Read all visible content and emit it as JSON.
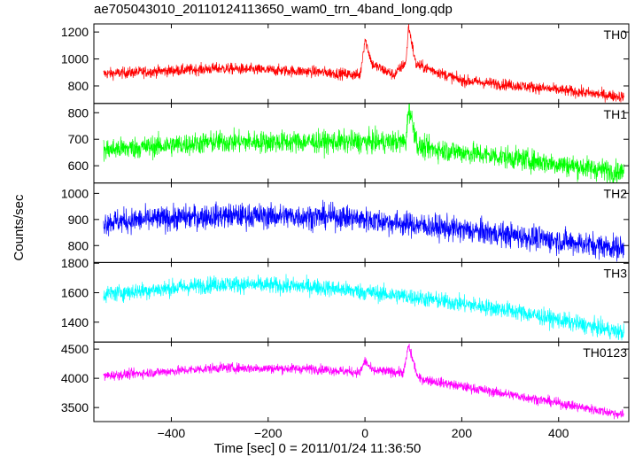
{
  "title": "ae705043010_20110124113650_wam0_trn_4band_long.qdp",
  "chart_data": {
    "type": "line",
    "xlabel": "Time [sec] 0 = 2011/01/24 11:36:50",
    "ylabel": "Counts/sec",
    "xlim": [
      -560,
      545
    ],
    "x_ticks": [
      -400,
      -200,
      0,
      200,
      400
    ],
    "x_tick_labels": [
      "−400",
      "−200",
      "0",
      "200",
      "400"
    ],
    "panels": [
      {
        "name": "TH0",
        "color": "#ff0000",
        "ylim": [
          670,
          1260
        ],
        "y_ticks": [
          800,
          1000,
          1200
        ],
        "y_tick_labels": [
          "800",
          "1000",
          "1200"
        ],
        "trend": [
          [
            -540,
            890
          ],
          [
            -300,
            930
          ],
          [
            -100,
            905
          ],
          [
            -10,
            880
          ],
          [
            0,
            1150
          ],
          [
            15,
            960
          ],
          [
            60,
            880
          ],
          [
            85,
            980
          ],
          [
            90,
            1250
          ],
          [
            105,
            960
          ],
          [
            200,
            840
          ],
          [
            350,
            790
          ],
          [
            530,
            720
          ]
        ],
        "noise": 40
      },
      {
        "name": "TH1",
        "color": "#00ff00",
        "ylim": [
          535,
          835
        ],
        "y_ticks": [
          600,
          700,
          800
        ],
        "y_tick_labels": [
          "600",
          "700",
          "800"
        ],
        "trend": [
          [
            -540,
            660
          ],
          [
            -300,
            690
          ],
          [
            0,
            690
          ],
          [
            85,
            690
          ],
          [
            90,
            825
          ],
          [
            110,
            670
          ],
          [
            300,
            630
          ],
          [
            530,
            575
          ]
        ],
        "noise": 40
      },
      {
        "name": "TH2",
        "color": "#0000ff",
        "ylim": [
          735,
          1040
        ],
        "y_ticks": [
          800,
          900,
          1000
        ],
        "y_tick_labels": [
          "800",
          "900",
          "1000"
        ],
        "trend": [
          [
            -540,
            890
          ],
          [
            -300,
            915
          ],
          [
            -50,
            910
          ],
          [
            100,
            880
          ],
          [
            300,
            840
          ],
          [
            530,
            790
          ]
        ],
        "noise": 45
      },
      {
        "name": "TH3",
        "color": "#00ffff",
        "ylim": [
          1265,
          1805
        ],
        "y_ticks": [
          1400,
          1600,
          1800
        ],
        "y_tick_labels": [
          "1400",
          "1600",
          "1800"
        ],
        "trend": [
          [
            -540,
            1590
          ],
          [
            -300,
            1660
          ],
          [
            -100,
            1640
          ],
          [
            100,
            1570
          ],
          [
            300,
            1480
          ],
          [
            530,
            1330
          ]
        ],
        "noise": 55
      },
      {
        "name": "TH0123",
        "color": "#ff00ff",
        "ylim": [
          3260,
          4620
        ],
        "y_ticks": [
          3500,
          4000,
          4500
        ],
        "y_tick_labels": [
          "3500",
          "4000",
          "4500"
        ],
        "trend": [
          [
            -540,
            4040
          ],
          [
            -300,
            4180
          ],
          [
            -100,
            4160
          ],
          [
            -10,
            4100
          ],
          [
            0,
            4300
          ],
          [
            15,
            4130
          ],
          [
            80,
            4100
          ],
          [
            90,
            4560
          ],
          [
            110,
            4000
          ],
          [
            200,
            3860
          ],
          [
            350,
            3650
          ],
          [
            530,
            3380
          ]
        ],
        "noise": 80
      }
    ]
  }
}
